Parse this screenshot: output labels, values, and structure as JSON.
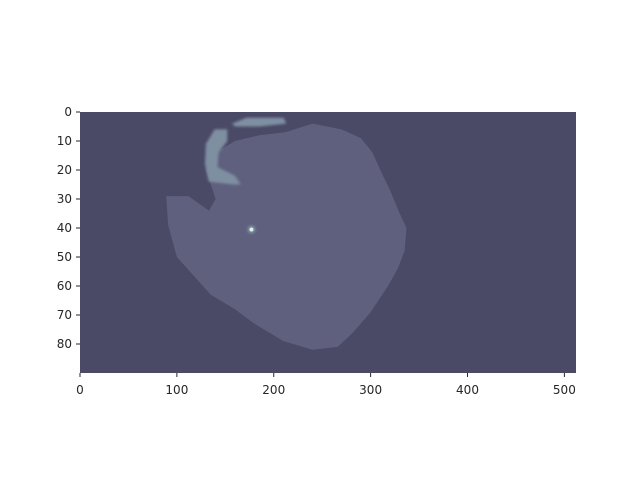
{
  "chart_data": {
    "type": "heatmap",
    "title": "",
    "xlabel": "",
    "ylabel": "",
    "xlim": [
      0,
      512
    ],
    "ylim": [
      90,
      0
    ],
    "x_ticks": [
      0,
      100,
      200,
      300,
      400,
      500
    ],
    "y_ticks": [
      0,
      10,
      20,
      30,
      40,
      50,
      60,
      70,
      80
    ],
    "grid": false,
    "colormap": "bone-like (dark blue-gray to light)",
    "colors": {
      "background": "#4a4a66",
      "tissue": "#5e607e",
      "bright_region": "#7f8fa2",
      "hot_spot": "#dcefe8",
      "axis": "#262626"
    },
    "regions": [
      {
        "label": "tissue",
        "level": 0.35,
        "outline": [
          [
            212,
            7
          ],
          [
            240,
            4
          ],
          [
            270,
            6
          ],
          [
            290,
            9
          ],
          [
            302,
            14
          ],
          [
            310,
            20
          ],
          [
            320,
            27
          ],
          [
            330,
            35
          ],
          [
            337,
            40
          ],
          [
            335,
            48
          ],
          [
            328,
            54
          ],
          [
            318,
            60
          ],
          [
            300,
            69
          ],
          [
            282,
            76
          ],
          [
            266,
            81
          ],
          [
            240,
            82
          ],
          [
            210,
            79
          ],
          [
            180,
            73
          ],
          [
            160,
            68
          ],
          [
            135,
            63
          ],
          [
            100,
            50
          ],
          [
            91,
            39
          ],
          [
            89,
            29
          ],
          [
            112,
            29
          ],
          [
            133,
            34
          ],
          [
            140,
            30
          ],
          [
            130,
            20
          ],
          [
            140,
            14
          ],
          [
            160,
            10
          ],
          [
            185,
            8
          ]
        ]
      },
      {
        "label": "bright-arc",
        "level": 0.6,
        "outline": [
          [
            130,
            11
          ],
          [
            139,
            6
          ],
          [
            152,
            6
          ],
          [
            152,
            10
          ],
          [
            143,
            14
          ],
          [
            142,
            19
          ],
          [
            160,
            22
          ],
          [
            166,
            25
          ],
          [
            158,
            25
          ],
          [
            133,
            24
          ],
          [
            129,
            18
          ]
        ]
      },
      {
        "label": "bright-top",
        "level": 0.55,
        "outline": [
          [
            157,
            4
          ],
          [
            172,
            2
          ],
          [
            210,
            2
          ],
          [
            213,
            4
          ],
          [
            185,
            5
          ],
          [
            175,
            5
          ],
          [
            160,
            5
          ]
        ]
      },
      {
        "label": "hot-spot",
        "level": 1.0,
        "point": [
          177,
          40.5
        ]
      }
    ]
  }
}
